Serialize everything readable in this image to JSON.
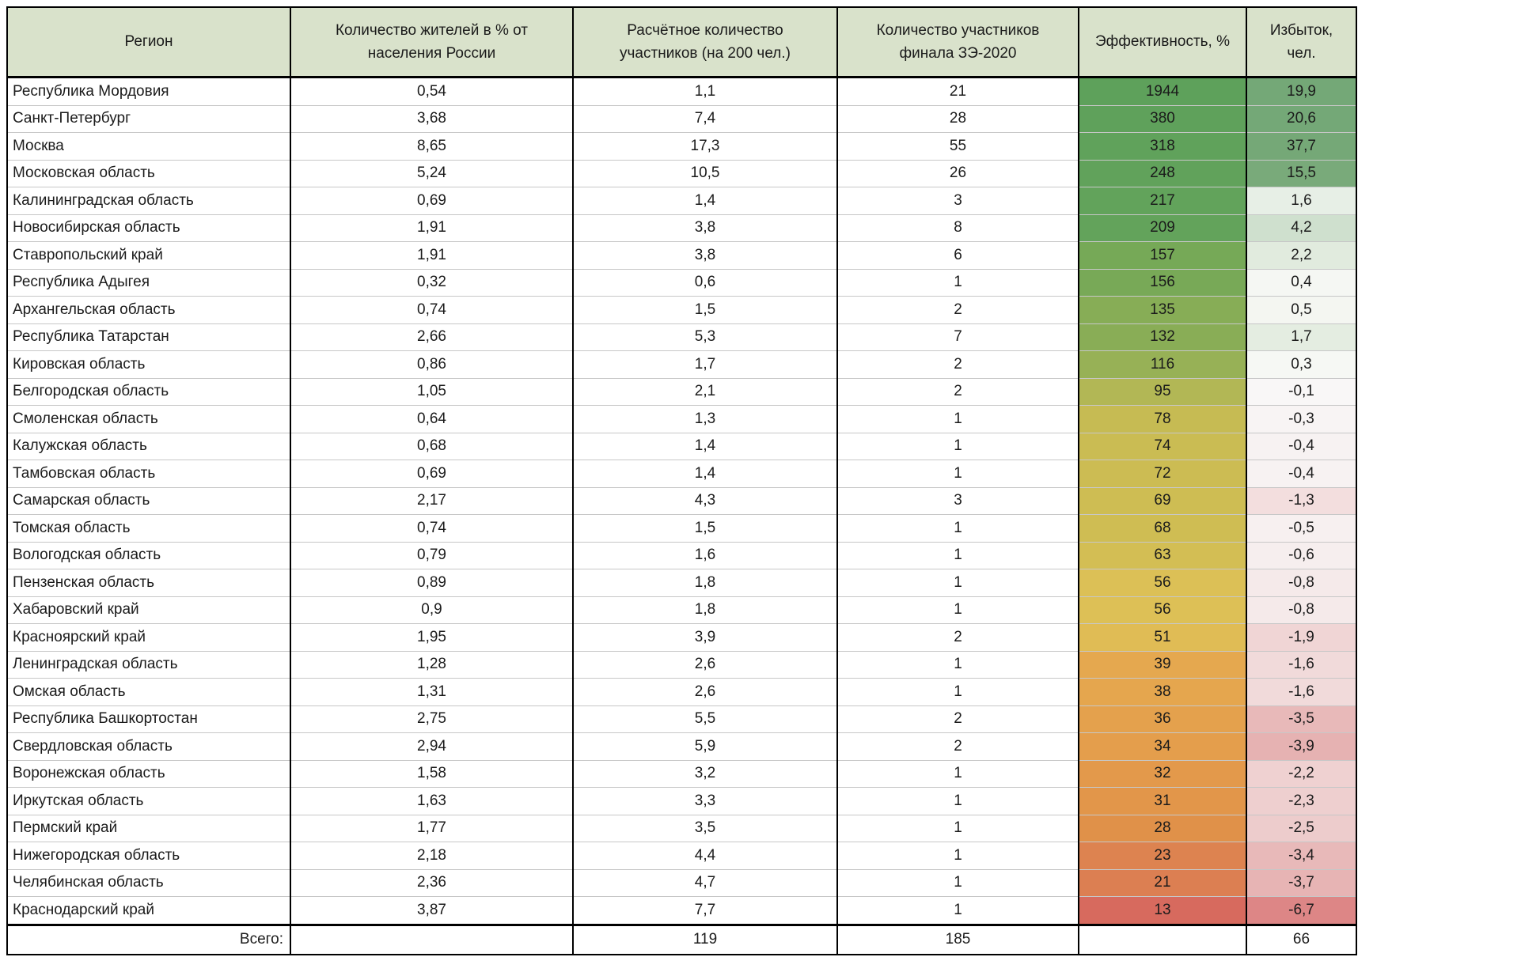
{
  "chart_data": {
    "type": "table",
    "title": "",
    "columns": [
      "Регион",
      "Количество жителей в % от населения России",
      "Расчётное количество участников (на 200 чел.)",
      "Количество участников финала ЗЭ-2020",
      "Эффективность, %",
      "Избыток, чел."
    ],
    "rows": [
      [
        "Республика Мордовия",
        "0,54",
        "1,1",
        "21",
        "1944",
        "19,9"
      ],
      [
        "Санкт-Петербург",
        "3,68",
        "7,4",
        "28",
        "380",
        "20,6"
      ],
      [
        "Москва",
        "8,65",
        "17,3",
        "55",
        "318",
        "37,7"
      ],
      [
        "Московская область",
        "5,24",
        "10,5",
        "26",
        "248",
        "15,5"
      ],
      [
        "Калининградская область",
        "0,69",
        "1,4",
        "3",
        "217",
        "1,6"
      ],
      [
        "Новосибирская область",
        "1,91",
        "3,8",
        "8",
        "209",
        "4,2"
      ],
      [
        "Ставропольский край",
        "1,91",
        "3,8",
        "6",
        "157",
        "2,2"
      ],
      [
        "Республика Адыгея",
        "0,32",
        "0,6",
        "1",
        "156",
        "0,4"
      ],
      [
        "Архангельская область",
        "0,74",
        "1,5",
        "2",
        "135",
        "0,5"
      ],
      [
        "Республика Татарстан",
        "2,66",
        "5,3",
        "7",
        "132",
        "1,7"
      ],
      [
        "Кировская область",
        "0,86",
        "1,7",
        "2",
        "116",
        "0,3"
      ],
      [
        "Белгородская область",
        "1,05",
        "2,1",
        "2",
        "95",
        "-0,1"
      ],
      [
        "Смоленская область",
        "0,64",
        "1,3",
        "1",
        "78",
        "-0,3"
      ],
      [
        "Калужская область",
        "0,68",
        "1,4",
        "1",
        "74",
        "-0,4"
      ],
      [
        "Тамбовская область",
        "0,69",
        "1,4",
        "1",
        "72",
        "-0,4"
      ],
      [
        "Самарская область",
        "2,17",
        "4,3",
        "3",
        "69",
        "-1,3"
      ],
      [
        "Томская область",
        "0,74",
        "1,5",
        "1",
        "68",
        "-0,5"
      ],
      [
        "Вологодская область",
        "0,79",
        "1,6",
        "1",
        "63",
        "-0,6"
      ],
      [
        "Пензенская область",
        "0,89",
        "1,8",
        "1",
        "56",
        "-0,8"
      ],
      [
        "Хабаровский край",
        "0,9",
        "1,8",
        "1",
        "56",
        "-0,8"
      ],
      [
        "Красноярский край",
        "1,95",
        "3,9",
        "2",
        "51",
        "-1,9"
      ],
      [
        "Ленинградская область",
        "1,28",
        "2,6",
        "1",
        "39",
        "-1,6"
      ],
      [
        "Омская область",
        "1,31",
        "2,6",
        "1",
        "38",
        "-1,6"
      ],
      [
        "Республика Башкортостан",
        "2,75",
        "5,5",
        "2",
        "36",
        "-3,5"
      ],
      [
        "Свердловская область",
        "2,94",
        "5,9",
        "2",
        "34",
        "-3,9"
      ],
      [
        "Воронежская область",
        "1,58",
        "3,2",
        "1",
        "32",
        "-2,2"
      ],
      [
        "Иркутская область",
        "1,63",
        "3,3",
        "1",
        "31",
        "-2,3"
      ],
      [
        "Пермский край",
        "1,77",
        "3,5",
        "1",
        "28",
        "-2,5"
      ],
      [
        "Нижегородская область",
        "2,18",
        "4,4",
        "1",
        "23",
        "-3,4"
      ],
      [
        "Челябинская область",
        "2,36",
        "4,7",
        "1",
        "21",
        "-3,7"
      ],
      [
        "Краснодарский край",
        "3,87",
        "7,7",
        "1",
        "13",
        "-6,7"
      ]
    ],
    "total_row": [
      "Всего:",
      "",
      "119",
      "185",
      "",
      "66"
    ],
    "conditional_formatting": {
      "efficiency_colors": [
        "#5ea15b",
        "#5fa15b",
        "#60a25b",
        "#61a25b",
        "#62a35b",
        "#63a35b",
        "#76a957",
        "#78a957",
        "#87ad56",
        "#89ad56",
        "#97b156",
        "#b2b755",
        "#c6bb53",
        "#cabc53",
        "#ccbc53",
        "#cebd53",
        "#cfbd53",
        "#d3be54",
        "#dcc056",
        "#ddc056",
        "#e0bc55",
        "#e5a84f",
        "#e5a64e",
        "#e4a14d",
        "#e49e4c",
        "#e3994b",
        "#e2964a",
        "#e09149",
        "#dd8350",
        "#dc7f52",
        "#d76a5e"
      ],
      "excess_colors": [
        "#74a877",
        "#74a877",
        "#75a877",
        "#79aa7a",
        "#e7efe6",
        "#cfe0ce",
        "#e1ebde",
        "#f5f7f3",
        "#f4f6f1",
        "#e4ede1",
        "#f6f8f4",
        "#f9f7f7",
        "#f8f4f4",
        "#f7f2f2",
        "#f7f2f2",
        "#f3dede",
        "#f7f0f0",
        "#f6eeee",
        "#f5eaea",
        "#f5eaea",
        "#f0d5d5",
        "#f1dada",
        "#f1dada",
        "#e8b9b9",
        "#e6b2b2",
        "#efd1d1",
        "#eecfcf",
        "#edcccc",
        "#e8b9b9",
        "#e7b4b4",
        "#dd8686"
      ]
    },
    "colors": {
      "header_bg": "#d9e2cb",
      "border": "#000000",
      "row_grid_line": "#c7c7c7",
      "background": "#ffffff"
    },
    "layout_hints": {
      "grid": "on",
      "legend": "none",
      "numeric_alignment": "center",
      "region_alignment": "left"
    }
  }
}
